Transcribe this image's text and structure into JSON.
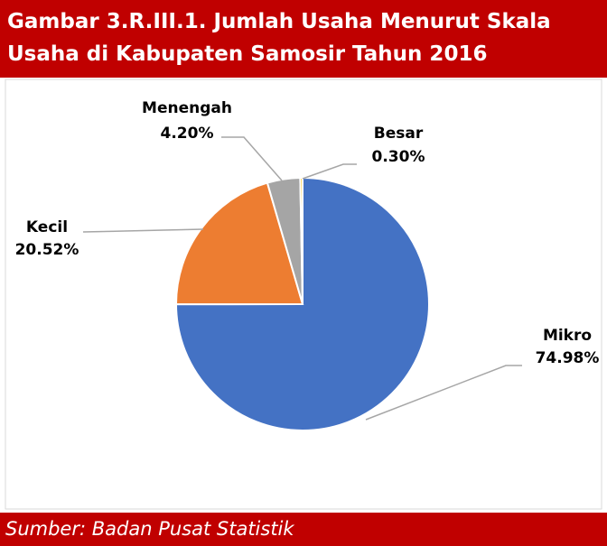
{
  "header": {
    "title_line1": "Gambar 3.R.III.1. Jumlah Usaha Menurut Skala",
    "title_line2": "Usaha di Kabupaten Samosir Tahun 2016"
  },
  "chart_data": {
    "type": "pie",
    "categories": [
      "Mikro",
      "Kecil",
      "Menengah",
      "Besar"
    ],
    "values": [
      74.98,
      20.52,
      4.2,
      0.3
    ],
    "value_labels": [
      "74.98%",
      "20.52%",
      "4.20%",
      "0.30%"
    ],
    "colors": [
      "#4472c4",
      "#ed7d31",
      "#a5a5a5",
      "#ffc000"
    ]
  },
  "footer": {
    "source": "Sumber: Badan Pusat Statistik"
  }
}
